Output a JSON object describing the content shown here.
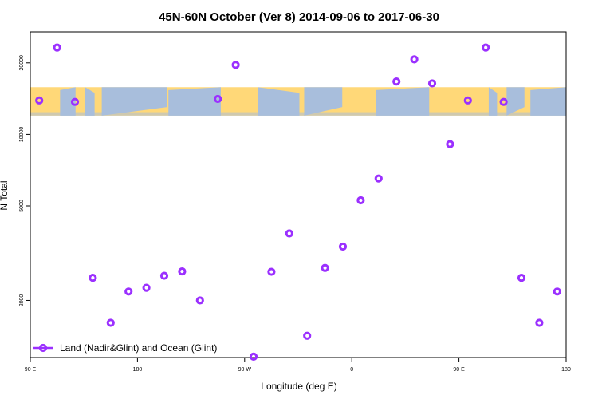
{
  "chart_data": {
    "type": "scatter",
    "title": "45N-60N October (Ver 8)   2014-09-06 to 2017-06-30",
    "xlabel": "Longitude (deg E)",
    "ylabel": "N Total",
    "x_scale": "linear",
    "y_scale": "log",
    "xlim": [
      90,
      540
    ],
    "ylim": [
      1150,
      27000
    ],
    "x_ticks": [
      {
        "value": 90,
        "label": "90 E"
      },
      {
        "value": 180,
        "label": "180"
      },
      {
        "value": 270,
        "label": "90 W"
      },
      {
        "value": 360,
        "label": "0"
      },
      {
        "value": 450,
        "label": "90 E"
      },
      {
        "value": 540,
        "label": "180"
      }
    ],
    "y_ticks": [
      {
        "value": 2000,
        "label": "2000"
      },
      {
        "value": 5000,
        "label": "5000"
      },
      {
        "value": 10000,
        "label": "10000"
      },
      {
        "value": 20000,
        "label": "20000"
      }
    ],
    "map_band": {
      "y_range": [
        12000,
        15800
      ],
      "land_color": "#FFD878",
      "ocean_color": "#A8BEDC"
    },
    "series": [
      {
        "name": "Land (Nadir&Glint) and Ocean (Glint)",
        "color": "#9B30FF",
        "marker": "open-circle",
        "points": [
          {
            "x": 97.5,
            "y": 13900
          },
          {
            "x": 112.5,
            "y": 23200
          },
          {
            "x": 127.5,
            "y": 13700
          },
          {
            "x": 142.5,
            "y": 2490
          },
          {
            "x": 157.5,
            "y": 1610
          },
          {
            "x": 172.5,
            "y": 2180
          },
          {
            "x": 187.5,
            "y": 2260
          },
          {
            "x": 202.5,
            "y": 2540
          },
          {
            "x": 217.5,
            "y": 2650
          },
          {
            "x": 232.5,
            "y": 2000
          },
          {
            "x": 247.5,
            "y": 14100
          },
          {
            "x": 262.5,
            "y": 19600
          },
          {
            "x": 277.5,
            "y": 1160
          },
          {
            "x": 292.5,
            "y": 2640
          },
          {
            "x": 307.5,
            "y": 3830
          },
          {
            "x": 322.5,
            "y": 1420
          },
          {
            "x": 337.5,
            "y": 2740
          },
          {
            "x": 352.5,
            "y": 3370
          },
          {
            "x": 367.5,
            "y": 5280
          },
          {
            "x": 382.5,
            "y": 6520
          },
          {
            "x": 397.5,
            "y": 16700
          },
          {
            "x": 412.5,
            "y": 20700
          },
          {
            "x": 427.5,
            "y": 16400
          },
          {
            "x": 442.5,
            "y": 9100
          },
          {
            "x": 457.5,
            "y": 13900
          },
          {
            "x": 472.5,
            "y": 23200
          },
          {
            "x": 487.5,
            "y": 13700
          },
          {
            "x": 502.5,
            "y": 2490
          },
          {
            "x": 517.5,
            "y": 1610
          },
          {
            "x": 532.5,
            "y": 2180
          }
        ]
      }
    ],
    "legend": {
      "position": "bottom-left"
    },
    "grid": false
  }
}
